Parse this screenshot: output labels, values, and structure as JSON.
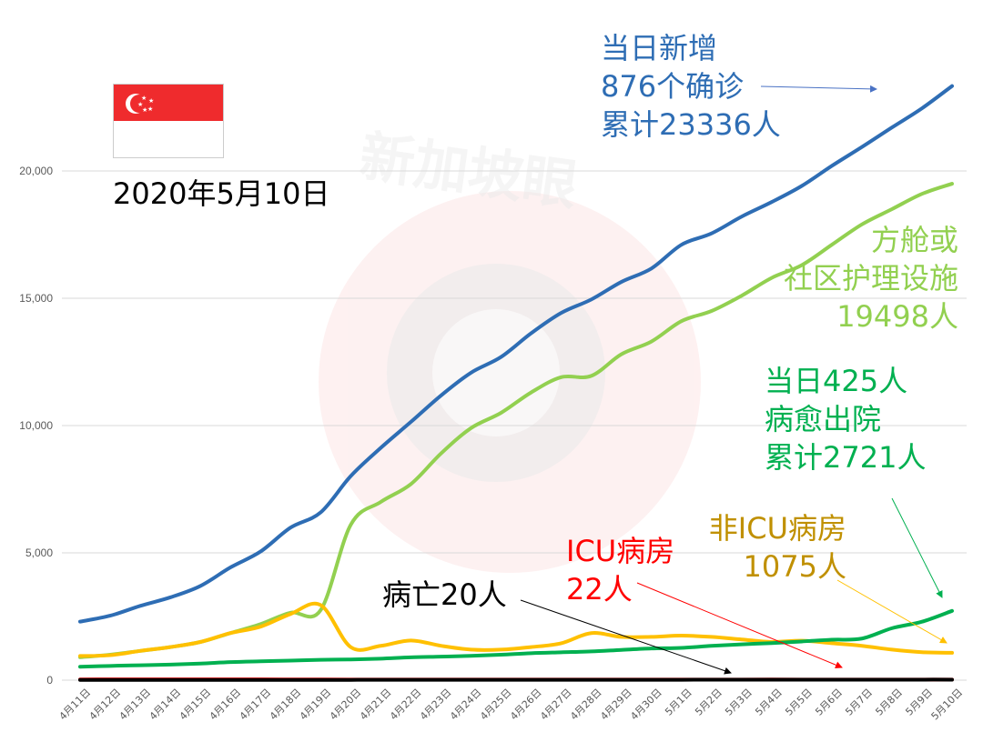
{
  "colors": {
    "cumulative": "#2e6db4",
    "community": "#92d050",
    "discharged": "#00b050",
    "non_icu": "#ffc000",
    "icu": "#ff0000",
    "deaths": "#000000",
    "non_icu_text": "#c09000",
    "grid": "#d9d9d9"
  },
  "date_label": "2020年5月10日",
  "flag_icon": "singapore-flag-icon",
  "watermark": "新加坡眼",
  "annotations": {
    "cumulative": [
      "当日新增",
      "876个确诊",
      "累计23336人"
    ],
    "community": [
      "方舱或",
      "社区护理设施",
      "19498人"
    ],
    "discharged": [
      "当日425人",
      "病愈出院",
      "累计2721人"
    ],
    "non_icu": [
      "非ICU病房",
      "1075人"
    ],
    "icu": [
      "ICU病房",
      "22人"
    ],
    "deaths": [
      "病亡20人"
    ]
  },
  "chart_data": {
    "type": "line",
    "title": "",
    "xlabel": "",
    "ylabel": "",
    "ylim": [
      0,
      25000
    ],
    "yticks": [
      0,
      5000,
      10000,
      15000,
      20000
    ],
    "ytick_labels": [
      "0",
      "5,000",
      "10,000",
      "15,000",
      "20,000"
    ],
    "grid": true,
    "categories": [
      "4月11日",
      "4月12日",
      "4月13日",
      "4月14日",
      "4月15日",
      "4月16日",
      "4月17日",
      "4月18日",
      "4月19日",
      "4月20日",
      "4月21日",
      "4月22日",
      "4月23日",
      "4月24日",
      "4月25日",
      "4月26日",
      "4月27日",
      "4月28日",
      "4月29日",
      "4月30日",
      "5月1日",
      "5月2日",
      "5月3日",
      "5月4日",
      "5月5日",
      "5月6日",
      "5月7日",
      "5月8日",
      "5月9日",
      "5月10日"
    ],
    "series": [
      {
        "key": "cumulative",
        "name": "累计确诊",
        "values": [
          2299,
          2532,
          2918,
          3252,
          3699,
          4427,
          5050,
          5992,
          6588,
          8014,
          9125,
          10141,
          11178,
          12075,
          12693,
          13624,
          14423,
          14951,
          15641,
          16169,
          17101,
          17548,
          18205,
          18778,
          19410,
          20198,
          20939,
          21707,
          22460,
          23336
        ]
      },
      {
        "key": "community",
        "name": "方舱或社区护理设施",
        "values": [
          900,
          1000,
          1150,
          1300,
          1500,
          1850,
          2200,
          2650,
          2750,
          6100,
          7000,
          7700,
          8900,
          9900,
          10500,
          11300,
          11900,
          11950,
          12800,
          13300,
          14100,
          14500,
          15100,
          15800,
          16300,
          17100,
          17900,
          18500,
          19100,
          19498
        ]
      },
      {
        "key": "non_icu",
        "name": "非ICU病房",
        "values": [
          950,
          980,
          1150,
          1300,
          1500,
          1850,
          2100,
          2600,
          2950,
          1300,
          1350,
          1560,
          1350,
          1200,
          1200,
          1300,
          1450,
          1850,
          1700,
          1700,
          1750,
          1700,
          1600,
          1500,
          1550,
          1450,
          1350,
          1200,
          1100,
          1075
        ]
      },
      {
        "key": "discharged",
        "name": "病愈出院",
        "values": [
          528,
          560,
          586,
          611,
          652,
          708,
          740,
          768,
          801,
          812,
          845,
          896,
          924,
          956,
          1002,
          1060,
          1095,
          1128,
          1188,
          1244,
          1268,
          1347,
          1408,
          1457,
          1519,
          1588,
          1634,
          2040,
          2296,
          2721
        ]
      },
      {
        "key": "icu",
        "name": "ICU病房",
        "values": [
          29,
          30,
          30,
          31,
          32,
          32,
          31,
          28,
          25,
          24,
          23,
          23,
          22,
          22,
          22,
          22,
          22,
          22,
          23,
          23,
          24,
          24,
          24,
          25,
          24,
          24,
          23,
          23,
          22,
          22
        ]
      },
      {
        "key": "deaths",
        "name": "病亡",
        "values": [
          8,
          8,
          9,
          10,
          10,
          11,
          11,
          11,
          11,
          11,
          12,
          12,
          12,
          12,
          12,
          12,
          12,
          14,
          14,
          14,
          15,
          17,
          17,
          18,
          18,
          18,
          18,
          18,
          20,
          20
        ]
      }
    ]
  }
}
